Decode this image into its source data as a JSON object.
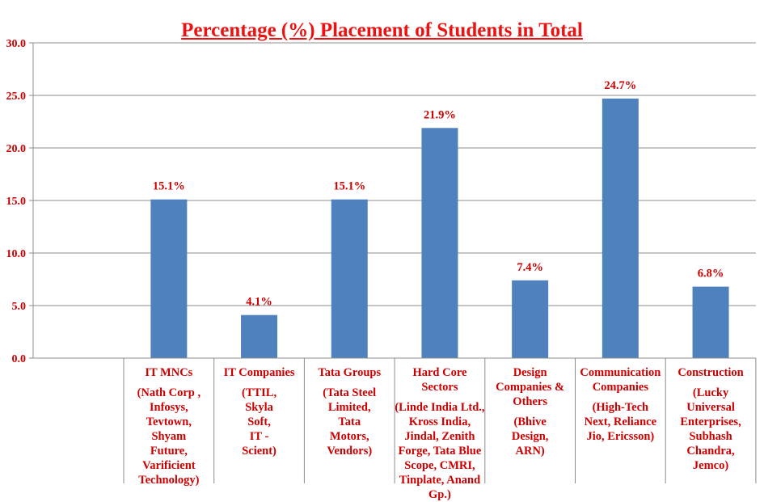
{
  "chart_data": {
    "type": "bar",
    "title": "Percentage (%) Placement of Students in Total",
    "xlabel": "",
    "ylabel": "",
    "ylim": [
      0,
      30
    ],
    "yticks": [
      "0.0",
      "5.0",
      "10.0",
      "15.0",
      "20.0",
      "25.0",
      "30.0"
    ],
    "grid": true,
    "bar_color": "#4f81bd",
    "label_color": "#cc0000",
    "title_color": "#ee1111",
    "categories": [
      {
        "name": "IT MNCs",
        "detail": "(Nath  Corp ,\nInfosys,\nTevtown,\nShyam\nFuture,\nVarificient\nTechnology)"
      },
      {
        "name": "IT Companies",
        "detail": "(TTIL,\nSkyla\nSoft,\nIT -\nScient)"
      },
      {
        "name": "Tata Groups",
        "detail": "(Tata Steel\nLimited,\nTata\nMotors,\nVendors)"
      },
      {
        "name": "Hard Core\nSectors",
        "detail": "(Linde India Ltd.,\nKross India,\nJindal, Zenith\nForge, Tata Blue\nScope, CMRI,\nTinplate, Anand\nGp.)"
      },
      {
        "name": "Design\nCompanies &\nOthers",
        "detail": "(Bhive\nDesign,\nARN)"
      },
      {
        "name": "Communication\nCompanies",
        "detail": "(High-Tech\nNext, Reliance\nJio, Ericsson)"
      },
      {
        "name": "Construction",
        "detail": "(Lucky\nUniversal\nEnterprises,\nSubhash\nChandra,\nJemco)"
      }
    ],
    "values": [
      15.1,
      4.1,
      15.1,
      21.9,
      7.4,
      24.7,
      6.8
    ],
    "data_labels": [
      "15.1%",
      "4.1%",
      "15.1%",
      "21.9%",
      "7.4%",
      "24.7%",
      "6.8%"
    ]
  }
}
